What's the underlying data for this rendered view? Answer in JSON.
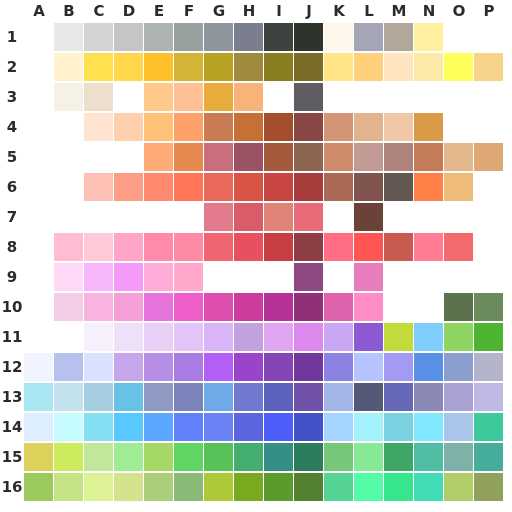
{
  "columns": [
    "A",
    "B",
    "C",
    "D",
    "E",
    "F",
    "G",
    "H",
    "I",
    "J",
    "K",
    "L",
    "M",
    "N",
    "O",
    "P"
  ],
  "rows": [
    "1",
    "2",
    "3",
    "4",
    "5",
    "6",
    "7",
    "8",
    "9",
    "10",
    "11",
    "12",
    "13",
    "14",
    "15",
    "16"
  ],
  "swatches": [
    [
      "",
      "#e8e8e8",
      "#d4d4d4",
      "#c4c5c4",
      "#adb3b1",
      "#98a19f",
      "#8e969d",
      "#7b7e8c",
      "#3e4340",
      "#2e332c",
      "#fdf6ea",
      "#a4a6b8",
      "#b1a89a",
      "#fff0a0",
      "",
      ""
    ],
    [
      "",
      "#fff2cc",
      "#ffe14f",
      "#ffd64c",
      "#ffc12a",
      "#d3b535",
      "#b8a223",
      "#a08a3e",
      "#8a7e22",
      "#7a6b26",
      "#ffe586",
      "#ffd07c",
      "#ffe4c0",
      "#fce9a6",
      "#ffff5c",
      "#f7d38a"
    ],
    [
      "",
      "#f6f1e6",
      "#ecdfcc",
      "",
      "#ffc98c",
      "#ffc095",
      "#e8ab3e",
      "#f7b37a",
      "",
      "#5f5c62",
      "",
      "",
      "",
      "",
      "",
      ""
    ],
    [
      "",
      "",
      "#ffe5d1",
      "#ffd0ad",
      "#ffc078",
      "#ffa068",
      "#c97b53",
      "#c67035",
      "#a44e2e",
      "#884744",
      "#d49577",
      "#e3b38e",
      "#efc6a6",
      "#da9b48",
      "",
      ""
    ],
    [
      "",
      "",
      "",
      "",
      "#ffab76",
      "#e6894e",
      "#c96e7d",
      "#9b5262",
      "#a55a3b",
      "#8c6651",
      "#d08b6c",
      "#c19a93",
      "#ad837b",
      "#c37b58",
      "#e3b88a",
      "#dea875"
    ],
    [
      "",
      "",
      "#fcc0b4",
      "#fd9d88",
      "#ff8a6f",
      "#ff7556",
      "#e8695c",
      "#d95347",
      "#c74642",
      "#a83c3b",
      "#a96955",
      "#81544d",
      "#635751",
      "#ff8047",
      "#eebc78",
      ""
    ],
    [
      "",
      "",
      "",
      "",
      "",
      "",
      "#e27b8b",
      "#d95c6a",
      "#de8375",
      "#e96b79",
      "",
      "#6b4238",
      "",
      "",
      "",
      ""
    ],
    [
      "",
      "#ffbdd1",
      "#ffcad7",
      "#ffa6c8",
      "#ff8aaa",
      "#ff8aa5",
      "#f16572",
      "#e8505f",
      "#c93e42",
      "#8d3e45",
      "#ff6e84",
      "#ff5654",
      "#c95a4f",
      "#ff7c94",
      "#f46a6c",
      ""
    ],
    [
      "",
      "#ffd8f6",
      "#f6b6fa",
      "#f59af9",
      "#ffabd8",
      "#ffa8cb",
      "",
      "",
      "",
      "#8e4985",
      "",
      "#e77dbc",
      "",
      "",
      "",
      ""
    ],
    [
      "",
      "#f3cde6",
      "#f9b3e1",
      "#f59fd7",
      "#e774dc",
      "#ef5ec8",
      "#de4eaf",
      "#cc3c9d",
      "#b63296",
      "#903076",
      "#de62ac",
      "#ff8dc3",
      "",
      "",
      "#5c724e",
      "#6b8b5d"
    ],
    [
      "",
      "",
      "#f6f0fc",
      "#efe0f9",
      "#e9cff6",
      "#e4c3f7",
      "#dab4f6",
      "#c3a1de",
      "#dfa5f1",
      "#dc88ec",
      "#c9a7f2",
      "#8b5ad2",
      "#c2da3b",
      "#80cdfd",
      "#8ed462",
      "#4db431"
    ],
    [
      "#f1f4fe",
      "#b6c1ed",
      "#d9e1fe",
      "#c6a6eb",
      "#b68ee6",
      "#a87ce2",
      "#b35ef4",
      "#9a44cc",
      "#8546b5",
      "#71379d",
      "#8b82e1",
      "#b5c4fe",
      "#a39bf2",
      "#5991e7",
      "#8a9fcd",
      "#b3b3cc"
    ],
    [
      "#a8e6f2",
      "#c3e2ee",
      "#a6cde0",
      "#68c1e7",
      "#8e9ac4",
      "#7c82ba",
      "#6faae8",
      "#7079cf",
      "#5b61bc",
      "#7150aa",
      "#a4b6e8",
      "#545978",
      "#6568b7",
      "#8a89b5",
      "#a8a2d4",
      "#bdb8e4"
    ],
    [
      "#dceeff",
      "#c7fcfe",
      "#85def1",
      "#58c9fe",
      "#5ba6fe",
      "#6081f9",
      "#6a82f3",
      "#5b65de",
      "#4d5efa",
      "#4253c8",
      "#a5d5fe",
      "#a4f1fe",
      "#7bd0e2",
      "#7fe7fe",
      "#a7c6ea",
      "#3dc99b"
    ],
    [
      "#dcd15a",
      "#cceb5e",
      "#c2e79c",
      "#9fec94",
      "#a6d866",
      "#61d561",
      "#57c258",
      "#44ae70",
      "#348f84",
      "#2c7d5b",
      "#76c778",
      "#87e895",
      "#3ea766",
      "#4fbea4",
      "#7eb1a8",
      "#45ad99"
    ],
    [
      "#9bc95c",
      "#c3e385",
      "#dcf294",
      "#d5e28c",
      "#accd7a",
      "#89bb77",
      "#acc938",
      "#7aa91f",
      "#5a9b2b",
      "#548131",
      "#54d394",
      "#53fba6",
      "#36e68d",
      "#41dcb5",
      "#b1cd6a",
      "#8fa15a"
    ]
  ]
}
